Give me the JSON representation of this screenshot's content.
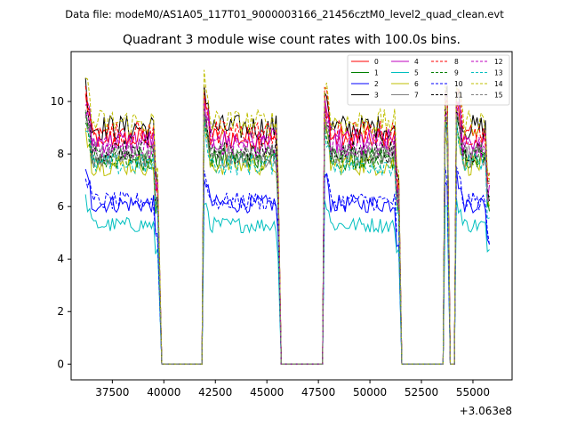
{
  "chart_data": {
    "type": "line",
    "suptitle": "Data file: modeM0/AS1A05_117T01_9000003166_21456cztM0_level2_quad_clean.evt",
    "title": "Quadrant 3 module wise count rates with 100.0s bins.",
    "xlabel": "",
    "ylabel": "",
    "x_offset_label": "+3.063e8",
    "xlim": [
      35500,
      56900
    ],
    "ylim": [
      -0.6,
      11.9
    ],
    "x_ticks": [
      37500,
      40000,
      42500,
      45000,
      47500,
      50000,
      52500,
      55000
    ],
    "x_tick_labels": [
      "37500",
      "40000",
      "42500",
      "45000",
      "47500",
      "50000",
      "52500",
      "55000"
    ],
    "y_ticks": [
      0,
      2,
      4,
      6,
      8,
      10
    ],
    "y_tick_labels": [
      "0",
      "2",
      "4",
      "6",
      "8",
      "10"
    ],
    "grid": false,
    "legend_position": "top-right",
    "bin_seconds": 100,
    "segments": [
      [
        36200,
        39700
      ],
      [
        41950,
        45600
      ],
      [
        47800,
        51400
      ],
      [
        53650,
        53750
      ],
      [
        54200,
        55800
      ]
    ],
    "gaps": [
      [
        39900,
        41850
      ],
      [
        45700,
        47700
      ],
      [
        51550,
        53550
      ],
      [
        53900,
        54100
      ]
    ],
    "series": [
      {
        "name": "0",
        "color": "#ff0000",
        "dash": "solid",
        "level": 8.6
      },
      {
        "name": "1",
        "color": "#008000",
        "dash": "solid",
        "level": 7.8
      },
      {
        "name": "2",
        "color": "#0000ff",
        "dash": "solid",
        "level": 6.1
      },
      {
        "name": "3",
        "color": "#000000",
        "dash": "solid",
        "level": 9.0
      },
      {
        "name": "4",
        "color": "#bf00bf",
        "dash": "solid",
        "level": 8.5
      },
      {
        "name": "5",
        "color": "#00bfbf",
        "dash": "solid",
        "level": 5.3
      },
      {
        "name": "6",
        "color": "#bfbf00",
        "dash": "solid",
        "level": 7.6
      },
      {
        "name": "7",
        "color": "#808080",
        "dash": "solid",
        "level": 7.9
      },
      {
        "name": "8",
        "color": "#ff0000",
        "dash": "dashed",
        "level": 8.8
      },
      {
        "name": "9",
        "color": "#008000",
        "dash": "dashed",
        "level": 7.9
      },
      {
        "name": "10",
        "color": "#0000ff",
        "dash": "dashed",
        "level": 6.2
      },
      {
        "name": "11",
        "color": "#000000",
        "dash": "dashed",
        "level": 8.1
      },
      {
        "name": "12",
        "color": "#bf00bf",
        "dash": "dashed",
        "level": 8.3
      },
      {
        "name": "13",
        "color": "#00bfbf",
        "dash": "dashed",
        "level": 7.6
      },
      {
        "name": "14",
        "color": "#bfbf00",
        "dash": "dashed",
        "level": 9.2
      },
      {
        "name": "15",
        "color": "#808080",
        "dash": "dashed",
        "level": 8.0
      }
    ]
  }
}
